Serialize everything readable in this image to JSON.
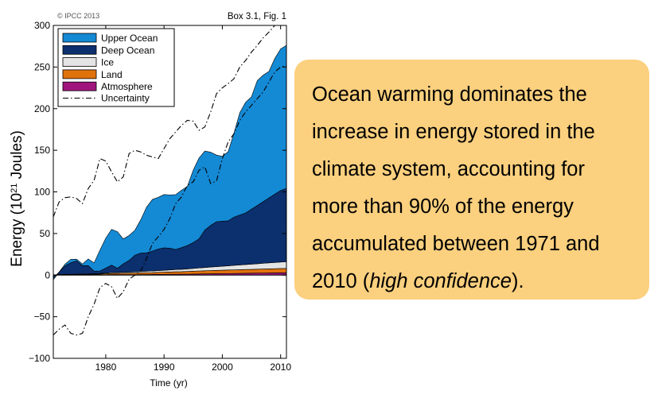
{
  "chart_data": {
    "type": "area",
    "credit": "© IPCC 2013",
    "figure_ref": "Box 3.1, Fig. 1",
    "xlabel": "Time (yr)",
    "ylabel_prefix": "Energy (10",
    "ylabel_sup": "21",
    "ylabel_suffix": " Joules)",
    "xlim": [
      1971,
      2011
    ],
    "ylim": [
      -100,
      300
    ],
    "xticks": [
      1980,
      1990,
      2000,
      2010
    ],
    "yticks": [
      -100,
      -50,
      0,
      50,
      100,
      150,
      200,
      250,
      300
    ],
    "legend_position": "top-left",
    "x": [
      1971,
      1972,
      1973,
      1974,
      1975,
      1976,
      1977,
      1978,
      1979,
      1980,
      1981,
      1982,
      1983,
      1984,
      1985,
      1986,
      1987,
      1988,
      1989,
      1990,
      1991,
      1992,
      1993,
      1994,
      1995,
      1996,
      1997,
      1998,
      1999,
      2000,
      2001,
      2002,
      2003,
      2004,
      2005,
      2006,
      2007,
      2008,
      2009,
      2010,
      2011
    ],
    "series": [
      {
        "name": "Atmosphere",
        "color": "#a0157d",
        "values": [
          0.2,
          0.3,
          0.3,
          0.3,
          0.3,
          0.3,
          0.3,
          0.4,
          0.4,
          0.4,
          0.5,
          0.5,
          0.5,
          0.6,
          0.6,
          0.7,
          0.7,
          0.8,
          0.9,
          0.9,
          1,
          1,
          1.1,
          1.2,
          1.3,
          1.4,
          1.5,
          1.6,
          1.7,
          1.8,
          1.9,
          2,
          2.1,
          2.2,
          2.3,
          2.4,
          2.5,
          2.6,
          2.7,
          2.8,
          2.9
        ]
      },
      {
        "name": "Land",
        "color": "#e0720c",
        "values": [
          0,
          0.2,
          0.4,
          0.3,
          0.5,
          0.6,
          0.6,
          0.7,
          0.9,
          1.2,
          1.5,
          1.6,
          1.8,
          1.7,
          1.9,
          2.1,
          2.2,
          2.2,
          2.4,
          2.6,
          2.8,
          3,
          3,
          3.2,
          3.4,
          3.6,
          3.7,
          3.9,
          4,
          4.1,
          4.2,
          4.3,
          4.4,
          4.5,
          4.6,
          4.7,
          4.8,
          4.9,
          5,
          5.1,
          5.2
        ]
      },
      {
        "name": "Ice",
        "color": "#e4e4e4",
        "values": [
          0,
          0.2,
          0.3,
          0.3,
          0.4,
          0.4,
          0.5,
          0.6,
          0.7,
          0.8,
          1,
          1.1,
          1.2,
          1.3,
          1.4,
          1.6,
          1.8,
          1.9,
          2.1,
          2.3,
          2.5,
          2.7,
          2.9,
          3.1,
          3.3,
          3.6,
          3.9,
          4.2,
          4.5,
          4.8,
          5.1,
          5.4,
          5.7,
          6,
          6.3,
          6.6,
          6.9,
          7.2,
          7.5,
          7.8,
          8
        ]
      },
      {
        "name": "Deep Ocean",
        "color": "#0c2f6e",
        "values": [
          -4,
          3,
          10,
          14,
          16,
          10,
          10,
          3,
          3,
          6,
          9,
          5,
          10,
          14,
          20,
          22,
          22,
          24,
          26,
          27,
          26,
          24,
          26,
          28,
          31,
          35,
          45,
          50,
          54,
          54,
          54,
          58,
          60,
          62,
          66,
          70,
          74,
          78,
          82,
          86,
          88
        ]
      },
      {
        "name": "Upper Ocean",
        "color": "#1489d4",
        "values": [
          -2,
          0,
          2,
          4,
          2,
          2,
          8,
          10,
          25,
          36,
          43,
          44,
          30,
          30,
          30,
          40,
          55,
          62,
          62,
          64,
          64,
          66,
          69,
          71,
          87,
          97,
          95,
          88,
          80,
          78,
          83,
          101,
          123,
          133,
          135,
          150,
          152,
          152,
          163,
          170,
          172
        ]
      }
    ],
    "uncertainty": {
      "name": "Uncertainty",
      "upper": [
        70,
        88,
        93,
        94,
        92,
        86,
        104,
        114,
        140,
        137,
        124,
        112,
        118,
        146,
        150,
        148,
        144,
        142,
        140,
        152,
        164,
        172,
        180,
        186,
        185,
        174,
        178,
        196,
        218,
        225,
        230,
        236,
        250,
        258,
        268,
        276,
        285,
        292,
        300,
        300,
        300
      ],
      "lower": [
        -72,
        -65,
        -60,
        -70,
        -72,
        -70,
        -50,
        -35,
        -15,
        -10,
        -14,
        -28,
        -20,
        -5,
        0,
        5,
        20,
        38,
        46,
        55,
        68,
        86,
        94,
        108,
        112,
        126,
        130,
        110,
        113,
        140,
        160,
        170,
        186,
        196,
        204,
        212,
        220,
        232,
        244,
        250,
        252
      ]
    }
  },
  "callout": {
    "text_main": "Ocean warming dominates the increase in energy stored in the climate system, accounting for more than 90% of the energy accumulated between 1971 and 2010 (",
    "text_italic": "high confidence",
    "text_end": ")."
  }
}
